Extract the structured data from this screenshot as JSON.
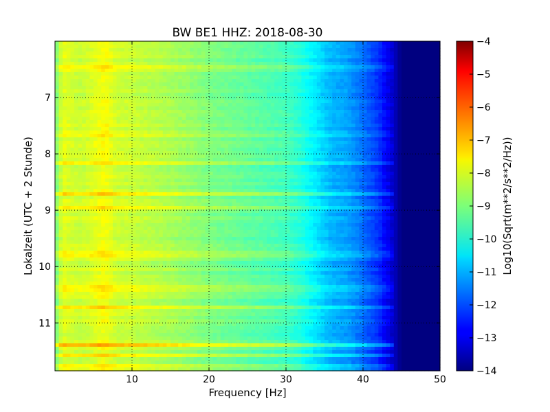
{
  "chart_data": {
    "type": "heatmap",
    "title": "BW BE1 HHZ: 2018-08-30",
    "xlabel": "Frequency [Hz]",
    "ylabel": "Lokalzeit (UTC + 2 Stunde)",
    "colorbar_label": "Log10(Sqrt(m**2/s**2/Hz))",
    "xlim": [
      0,
      50
    ],
    "ylim": [
      6.0,
      11.85
    ],
    "y_inverted": true,
    "x_ticks": [
      10,
      20,
      30,
      40,
      50
    ],
    "x_tick_labels": [
      "10",
      "20",
      "30",
      "40",
      "50"
    ],
    "y_ticks": [
      7,
      8,
      9,
      10,
      11
    ],
    "y_tick_labels": [
      "7",
      "8",
      "9",
      "10",
      "11"
    ],
    "clim": [
      -14,
      -4
    ],
    "colorbar_ticks": [
      -4,
      -5,
      -6,
      -7,
      -8,
      -9,
      -10,
      -11,
      -12,
      -13,
      -14
    ],
    "colorbar_tick_labels": [
      "−4",
      "−5",
      "−6",
      "−7",
      "−8",
      "−9",
      "−10",
      "−11",
      "−12",
      "−13",
      "−14"
    ],
    "colormap": "jet",
    "grid": true,
    "frequency_profile": {
      "frequency_hz": [
        0.3,
        1,
        2,
        3,
        4,
        6,
        6.5,
        8,
        10,
        15,
        20,
        25,
        30,
        32,
        34,
        36,
        38,
        40,
        42,
        44,
        45,
        47,
        50
      ],
      "log10_amplitude": [
        -8.9,
        -8.0,
        -8.15,
        -8.3,
        -8.25,
        -7.9,
        -7.8,
        -8.25,
        -8.3,
        -8.6,
        -9.0,
        -9.3,
        -9.6,
        -9.95,
        -10.5,
        -11.0,
        -11.2,
        -11.7,
        -12.3,
        -13.3,
        -14.0,
        -14.0,
        -14.0
      ]
    },
    "bright_time_bands": [
      {
        "time_h": 6.48,
        "offset": 0.5
      },
      {
        "time_h": 7.65,
        "offset": 0.6
      },
      {
        "time_h": 8.15,
        "offset": 0.4
      },
      {
        "time_h": 8.7,
        "offset": 0.9
      },
      {
        "time_h": 8.95,
        "offset": 0.4
      },
      {
        "time_h": 9.78,
        "offset": 0.6
      },
      {
        "time_h": 10.38,
        "offset": 0.5
      },
      {
        "time_h": 10.73,
        "offset": 0.7
      },
      {
        "time_h": 11.4,
        "offset": 1.0
      },
      {
        "time_h": 11.57,
        "offset": 0.8
      },
      {
        "time_h": 11.78,
        "offset": 0.6
      }
    ]
  }
}
